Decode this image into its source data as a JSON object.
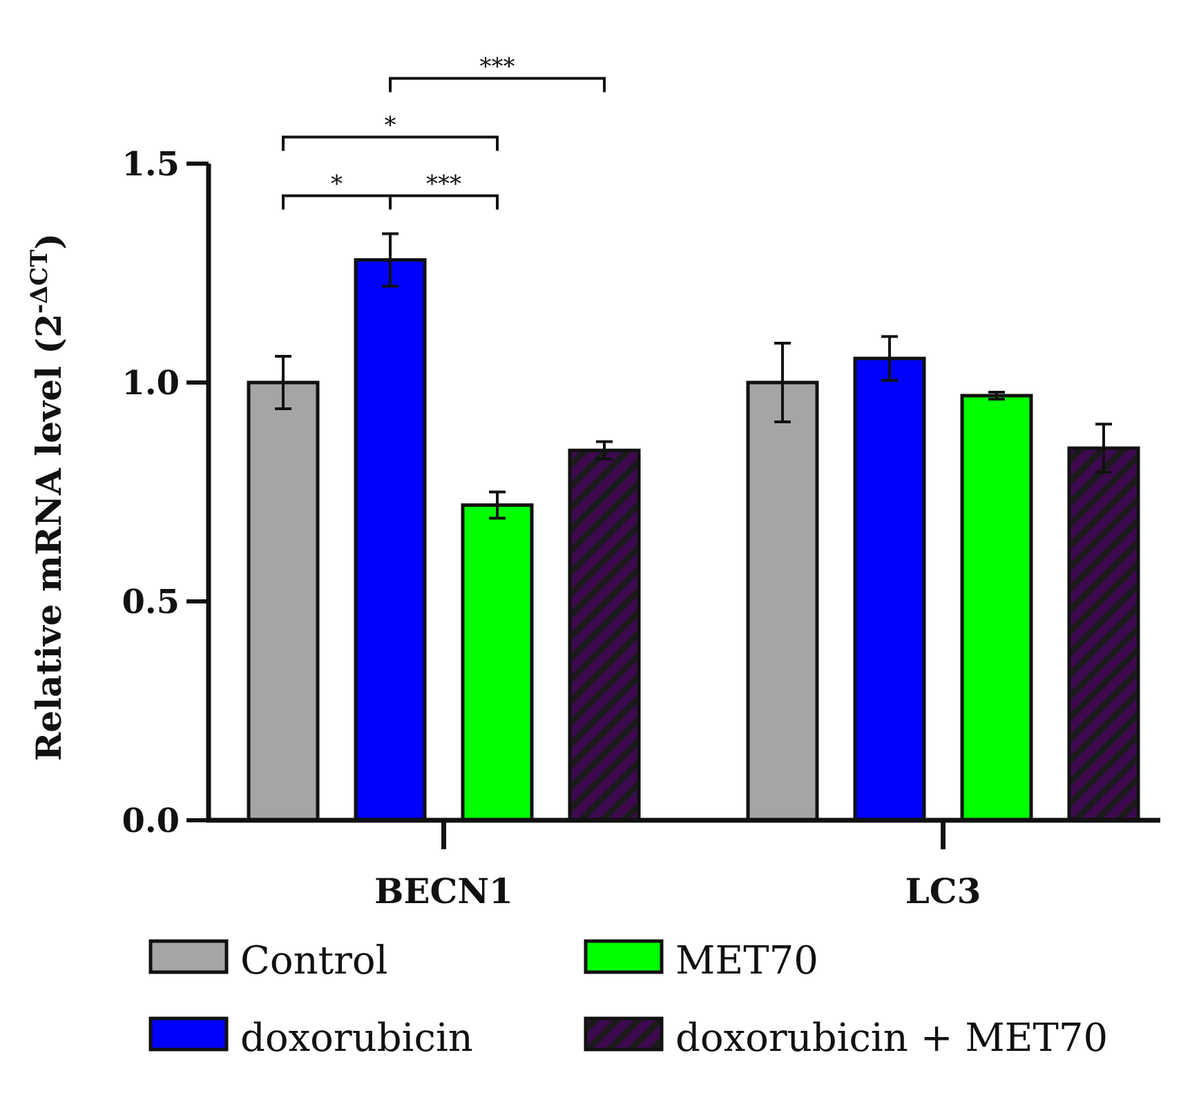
{
  "chart_data": {
    "type": "bar",
    "title": "",
    "xlabel": "",
    "ylabel": {
      "prefix": "Relative mRNA level (2",
      "superscript": "-ΔCT",
      "suffix": ")"
    },
    "ylim": [
      0,
      1.5
    ],
    "yticks": [
      "0.0",
      "0.5",
      "1.0",
      "1.5"
    ],
    "ytick_values": [
      0,
      0.5,
      1.0,
      1.5
    ],
    "categories": [
      "BECN1",
      "LC3"
    ],
    "series": [
      {
        "name": "Control",
        "values": [
          1.0,
          1.0
        ],
        "errors": [
          0.06,
          0.09
        ],
        "color": "#a5a5a8",
        "pattern": "solid"
      },
      {
        "name": "doxorubicin",
        "values": [
          1.28,
          1.055
        ],
        "errors": [
          0.06,
          0.05
        ],
        "color": "#0000ff",
        "pattern": "solid"
      },
      {
        "name": "MET70",
        "values": [
          0.72,
          0.97
        ],
        "errors": [
          0.03,
          0.008
        ],
        "color": "#00ff00",
        "pattern": "solid"
      },
      {
        "name": "doxorubicin + MET70",
        "values": [
          0.845,
          0.85
        ],
        "errors": [
          0.02,
          0.055
        ],
        "color": "#3d0a4f",
        "pattern": "hatched"
      }
    ],
    "significance": [
      {
        "category": "BECN1",
        "from_series": 0,
        "to_series": 1,
        "label": "*"
      },
      {
        "category": "BECN1",
        "from_series": 1,
        "to_series": 2,
        "label": "***"
      },
      {
        "category": "BECN1",
        "from_series": 0,
        "to_series": 2,
        "label": "*"
      },
      {
        "category": "BECN1",
        "from_series": 1,
        "to_series": 3,
        "label": "***"
      }
    ],
    "legend": {
      "placement": "bottom",
      "entries": [
        "Control",
        "MET70",
        "doxorubicin",
        "doxorubicin + MET70"
      ]
    }
  }
}
